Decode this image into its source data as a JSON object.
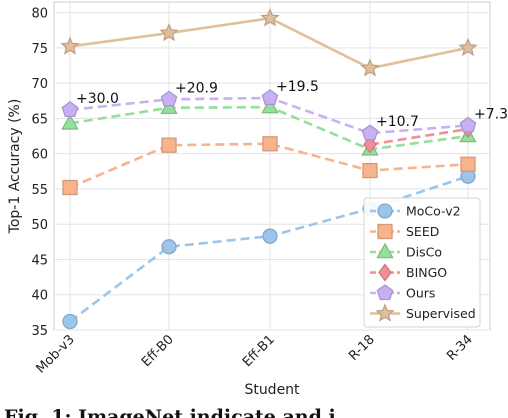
{
  "chart_data": {
    "type": "line",
    "title": "",
    "xlabel": "Student",
    "ylabel": "Top-1 Accuracy (%)",
    "categories": [
      "Mob-v3",
      "Eff-B0",
      "Eff-B1",
      "R-18",
      "R-34"
    ],
    "ylim": [
      35,
      81.5
    ],
    "yticks": [
      35,
      40,
      45,
      50,
      55,
      60,
      65,
      70,
      75,
      80
    ],
    "grid": true,
    "legend": "lower-right",
    "series": [
      {
        "name": "MoCo-v2",
        "values": [
          36.2,
          46.8,
          48.3,
          52.2,
          56.8
        ],
        "color": "#9cc5ec",
        "marker": "circle",
        "dash": true
      },
      {
        "name": "SEED",
        "values": [
          55.2,
          61.2,
          61.4,
          57.6,
          58.5
        ],
        "color": "#f7b48c",
        "marker": "square",
        "dash": true
      },
      {
        "name": "DisCo",
        "values": [
          64.3,
          66.5,
          66.6,
          60.6,
          62.5
        ],
        "color": "#93e09a",
        "marker": "triangle",
        "dash": true
      },
      {
        "name": "BINGO",
        "values": [
          null,
          null,
          null,
          61.3,
          63.5
        ],
        "color": "#f28e96",
        "marker": "diamond",
        "dash": true
      },
      {
        "name": "Ours",
        "values": [
          66.2,
          67.7,
          67.9,
          62.9,
          64.0
        ],
        "color": "#c8b0f3",
        "marker": "pentagon",
        "dash": true
      },
      {
        "name": "Supervised",
        "values": [
          75.2,
          77.1,
          79.2,
          72.1,
          75.0
        ],
        "color": "#dfbf9c",
        "marker": "star",
        "dash": false
      }
    ],
    "annotations": [
      {
        "text": "+30.0",
        "category": "Mob-v3",
        "y": 66.2
      },
      {
        "text": "+20.9",
        "category": "Eff-B0",
        "y": 67.7
      },
      {
        "text": "+19.5",
        "category": "Eff-B1",
        "y": 67.9
      },
      {
        "text": "+10.7",
        "category": "R-18",
        "y": 62.9
      },
      {
        "text": "+7.3",
        "category": "R-34",
        "y": 64.0
      }
    ]
  },
  "caption": {
    "text": "Fig. 1: ImageNet   indicate   and   i"
  }
}
